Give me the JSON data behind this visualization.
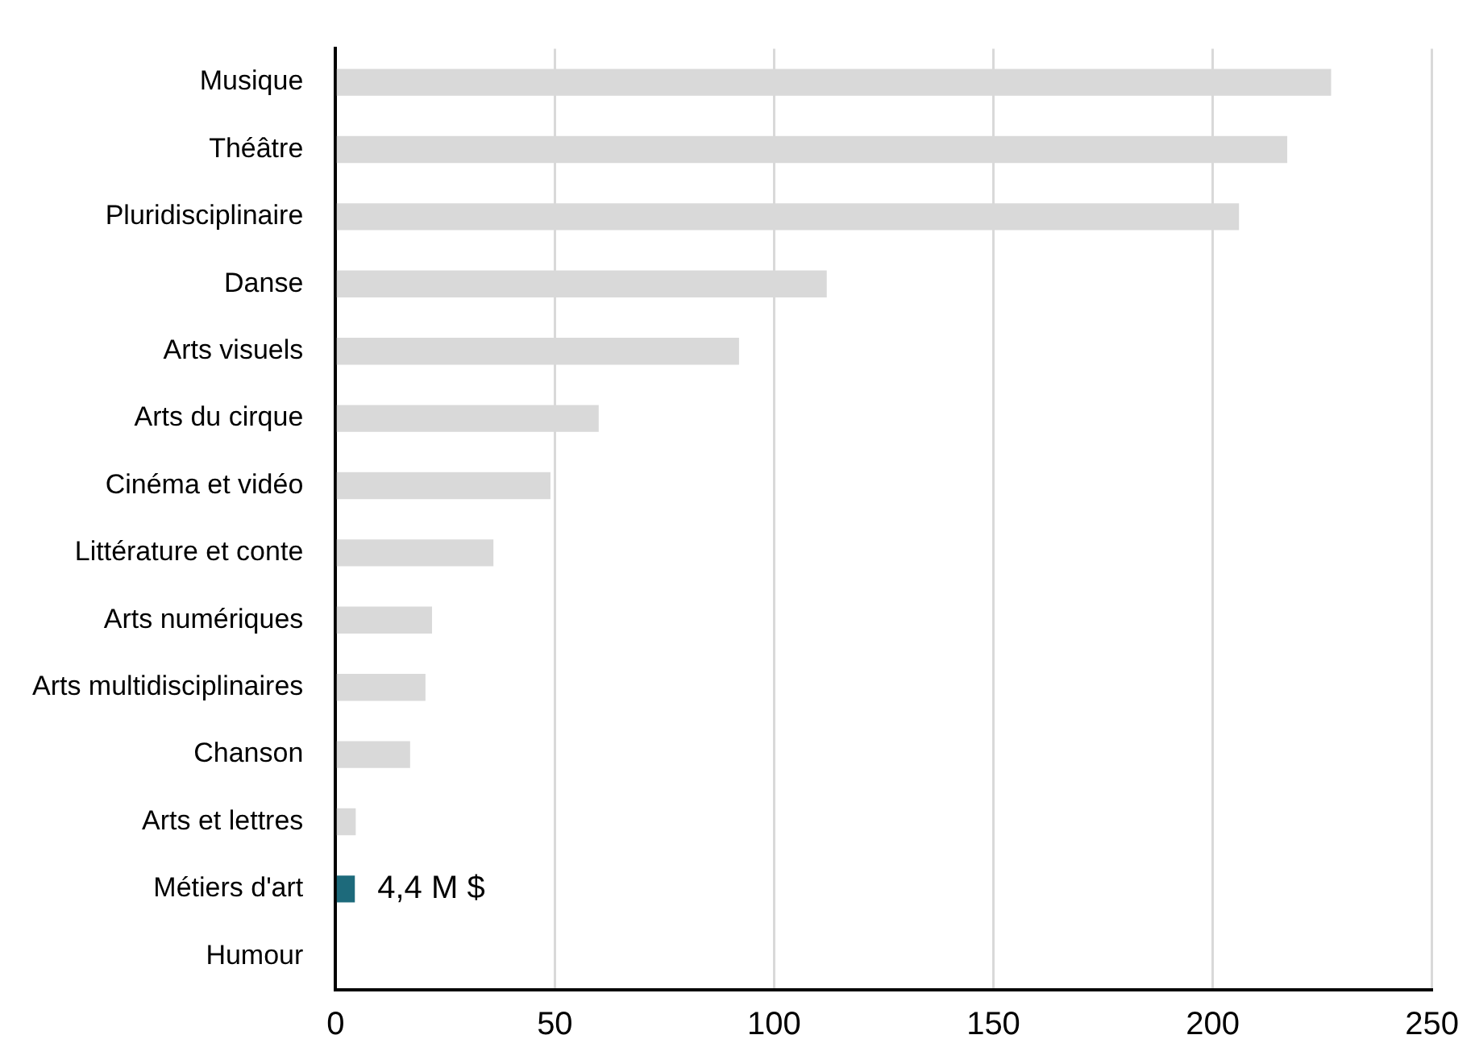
{
  "chart_data": {
    "type": "bar",
    "orientation": "horizontal",
    "categories": [
      "Musique",
      "Théâtre",
      "Pluridisciplinaire",
      "Danse",
      "Arts visuels",
      "Arts du cirque",
      "Cinéma et vidéo",
      "Littérature et conte",
      "Arts numériques",
      "Arts multidisciplinaires",
      "Chanson",
      "Arts et lettres",
      "Métiers d'art",
      "Humour"
    ],
    "values": [
      227,
      217,
      206,
      112,
      92,
      60,
      49,
      36,
      22,
      20.5,
      17,
      4.6,
      4.4,
      0
    ],
    "colors": [
      "#d9d9d9",
      "#d9d9d9",
      "#d9d9d9",
      "#d9d9d9",
      "#d9d9d9",
      "#d9d9d9",
      "#d9d9d9",
      "#d9d9d9",
      "#d9d9d9",
      "#d9d9d9",
      "#d9d9d9",
      "#d9d9d9",
      "#1d6a7b",
      "#d9d9d9"
    ],
    "value_labels": [
      null,
      null,
      null,
      null,
      null,
      null,
      null,
      null,
      null,
      null,
      null,
      null,
      "4,4 M $",
      null
    ],
    "xlim": [
      0,
      250
    ],
    "xticks": [
      0,
      50,
      100,
      150,
      200,
      250
    ],
    "grid": "x",
    "legend": false
  }
}
